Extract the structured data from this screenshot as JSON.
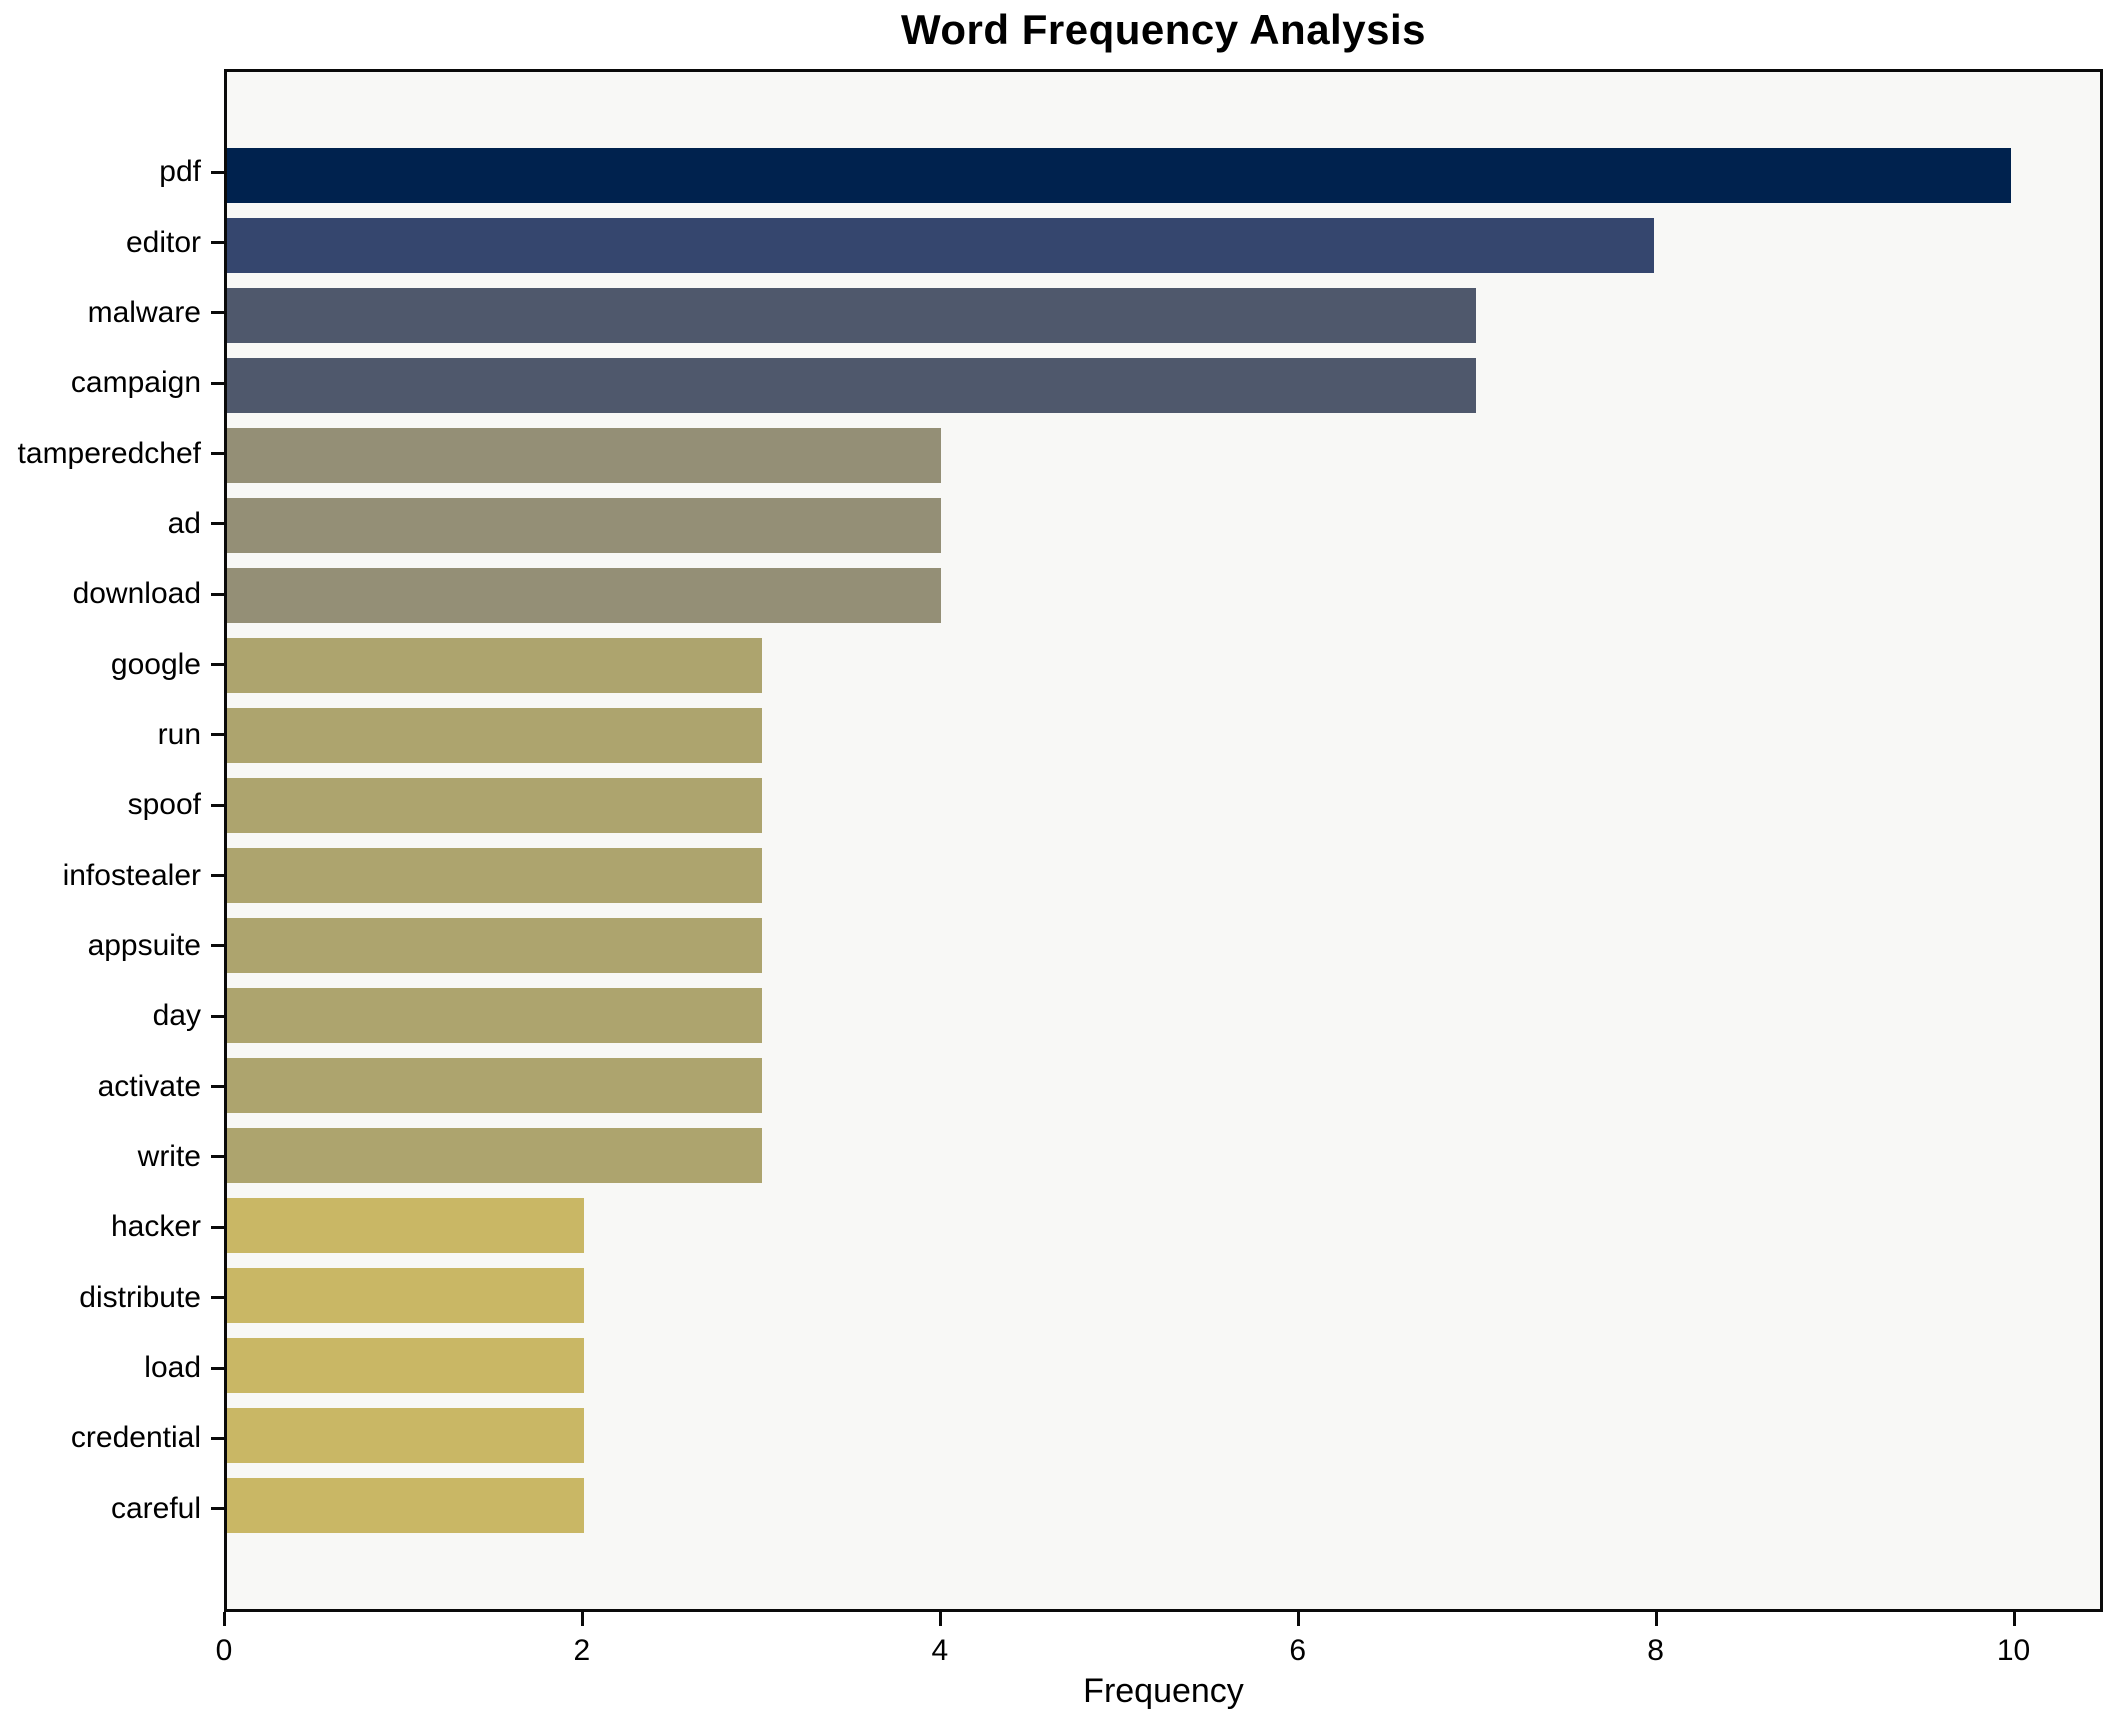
{
  "chart_data": {
    "type": "bar",
    "orientation": "horizontal",
    "title": "Word Frequency Analysis",
    "xlabel": "Frequency",
    "ylabel": "",
    "grid": false,
    "legend_position": "none",
    "xlim": [
      0,
      10.5
    ],
    "xticks": [
      0,
      2,
      4,
      6,
      8,
      10
    ],
    "categories": [
      "pdf",
      "editor",
      "malware",
      "campaign",
      "tamperedchef",
      "ad",
      "download",
      "google",
      "run",
      "spoof",
      "infostealer",
      "appsuite",
      "day",
      "activate",
      "write",
      "hacker",
      "distribute",
      "load",
      "credential",
      "careful"
    ],
    "values": [
      10,
      8,
      7,
      7,
      4,
      4,
      4,
      3,
      3,
      3,
      3,
      3,
      3,
      3,
      3,
      2,
      2,
      2,
      2,
      2
    ],
    "bar_colors": [
      "#00224E",
      "#35466E",
      "#4F586C",
      "#4F586C",
      "#948F76",
      "#948F76",
      "#948F76",
      "#ADA46E",
      "#ADA46E",
      "#ADA46E",
      "#ADA46E",
      "#ADA46E",
      "#ADA46E",
      "#ADA46E",
      "#ADA46E",
      "#C9B765",
      "#C9B765",
      "#C9B765",
      "#C9B765",
      "#C9B765"
    ],
    "plot_background": "#f8f8f6",
    "figure_background": "#ffffff",
    "spine_color": "#0a0a0a"
  }
}
